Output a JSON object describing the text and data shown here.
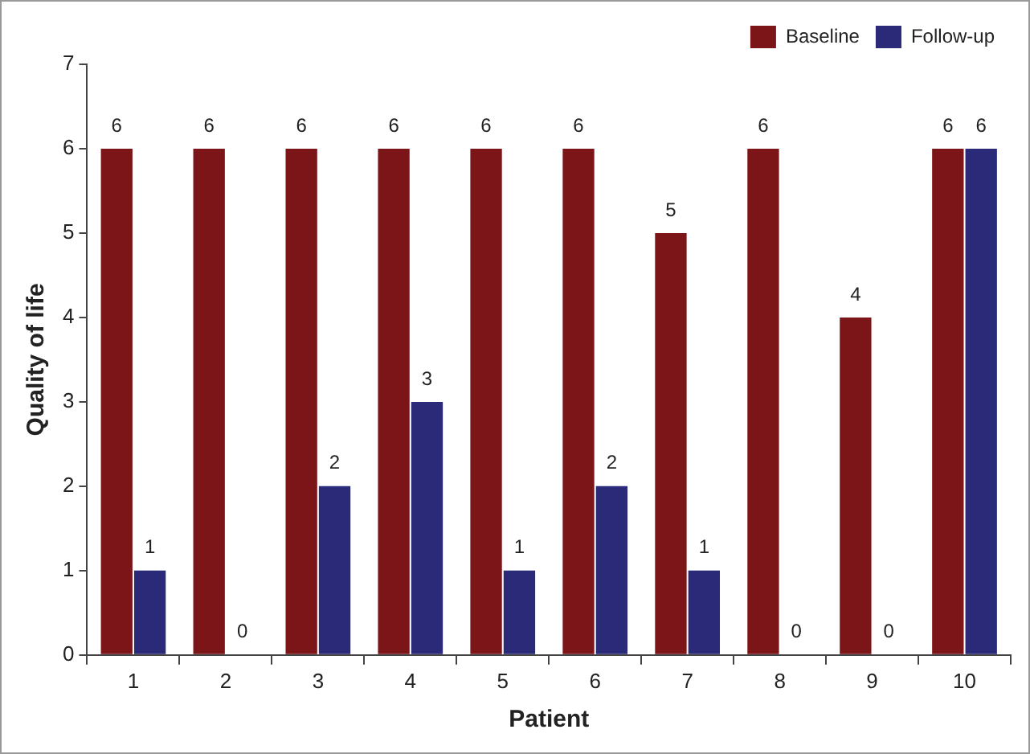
{
  "chart_data": {
    "type": "bar",
    "xlabel": "Patient",
    "ylabel": "Quality of life",
    "categories": [
      "1",
      "2",
      "3",
      "4",
      "5",
      "6",
      "7",
      "8",
      "9",
      "10"
    ],
    "series": [
      {
        "name": "Baseline",
        "color": "#7b1518",
        "values": [
          6,
          6,
          6,
          6,
          6,
          6,
          5,
          6,
          4,
          6
        ]
      },
      {
        "name": "Follow-up",
        "color": "#2b2a78",
        "values": [
          1,
          0,
          2,
          3,
          1,
          2,
          1,
          0,
          0,
          6
        ]
      }
    ],
    "ylim": [
      0,
      7
    ],
    "yticks": [
      0,
      1,
      2,
      3,
      4,
      5,
      6,
      7
    ],
    "grid": false,
    "legend": "top right",
    "data_labels": true
  }
}
